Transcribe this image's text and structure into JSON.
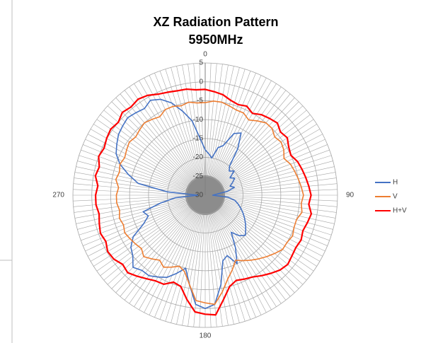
{
  "chart_data": {
    "type": "radar",
    "title": "XZ Radiation Pattern",
    "subtitle": "5950MHz",
    "categories": [
      "0",
      null,
      null,
      null,
      null,
      null,
      null,
      null,
      null,
      null,
      null,
      null,
      null,
      null,
      null,
      null,
      null,
      null,
      "90",
      null,
      null,
      null,
      null,
      null,
      null,
      null,
      null,
      null,
      null,
      null,
      null,
      null,
      null,
      null,
      null,
      null,
      "180",
      null,
      null,
      null,
      null,
      null,
      null,
      null,
      null,
      null,
      null,
      null,
      null,
      null,
      null,
      null,
      null,
      null,
      "270",
      null,
      null,
      null,
      null,
      null,
      null,
      null,
      null,
      null,
      null,
      null,
      null,
      null,
      null,
      null,
      null,
      null
    ],
    "ylim": [
      -30,
      5
    ],
    "yticks": [
      5,
      0,
      -5,
      -10,
      -15,
      -20,
      -25,
      -30
    ],
    "grid": true,
    "legend": "right",
    "series": [
      {
        "name": "H",
        "color": "#4472c4",
        "values": [
          -18,
          -19,
          -20,
          -17,
          -16,
          -12,
          -11,
          -15,
          -20,
          -21,
          -20,
          -22,
          -21,
          -22,
          -23,
          -22,
          -24,
          -27,
          -28,
          -24,
          -22,
          -21,
          -20,
          -19,
          -18,
          -17,
          -16,
          -15,
          -16,
          -18,
          -14,
          -10,
          -13,
          -12,
          -6,
          -1,
          0,
          -1,
          -6,
          -10,
          -8,
          -6,
          -5,
          -4,
          -4,
          -3,
          -5,
          -6,
          -8,
          -12,
          -14,
          -13,
          -18,
          -22,
          -28,
          -20,
          -12,
          -9,
          -6,
          -4,
          -3,
          -2,
          -1.5,
          -1,
          -1.5,
          -2,
          -1,
          -2,
          -4,
          -7,
          -10,
          -15
        ]
      },
      {
        "name": "V",
        "color": "#ed7d31",
        "values": [
          -5.5,
          -5,
          -5,
          -5.5,
          -6,
          -6,
          -7,
          -6,
          -5,
          -5,
          -6,
          -5.5,
          -6,
          -7,
          -6,
          -5.5,
          -5,
          -4.5,
          -4,
          -4.5,
          -4,
          -5,
          -5,
          -4.5,
          -5,
          -5,
          -6,
          -7,
          -8,
          -9,
          -10,
          -11,
          -9,
          -7,
          -4,
          -1,
          -1.5,
          -2,
          -6,
          -9,
          -10,
          -9,
          -8,
          -9,
          -8,
          -7,
          -8,
          -7.5,
          -7,
          -6.5,
          -7,
          -6.5,
          -7,
          -6.5,
          -6.5,
          -7,
          -6,
          -6.5,
          -6,
          -6.5,
          -6,
          -5.5,
          -6,
          -5.5,
          -5,
          -5.5,
          -6,
          -5,
          -5,
          -5.5,
          -5,
          -5.5
        ]
      },
      {
        "name": "H+V",
        "color": "#ff0000",
        "values": [
          -2,
          -2.5,
          -3,
          -4,
          -4.5,
          -4,
          -5,
          -4,
          -3.5,
          -3,
          -4,
          -3.5,
          -4.5,
          -5,
          -4,
          -3.5,
          -3,
          -2.5,
          -2,
          -2.5,
          -1.5,
          -2,
          -2.5,
          -2,
          -2.3,
          -2,
          -1.5,
          -2,
          -3,
          -4,
          -5,
          -5.5,
          -6,
          -5,
          -2,
          1.8,
          1.5,
          1,
          -2,
          -5,
          -5.5,
          -4,
          -3.8,
          -3,
          -2,
          -1,
          -1.5,
          -0.5,
          -0.2,
          -1,
          -0.5,
          -1,
          -1.5,
          -1,
          -1,
          -1.5,
          -0.5,
          -1,
          0,
          -0.5,
          0.1,
          0.5,
          0,
          1,
          0.5,
          1,
          0.5,
          -0.5,
          -1,
          -1.4,
          -1.5,
          -2
        ]
      }
    ]
  }
}
